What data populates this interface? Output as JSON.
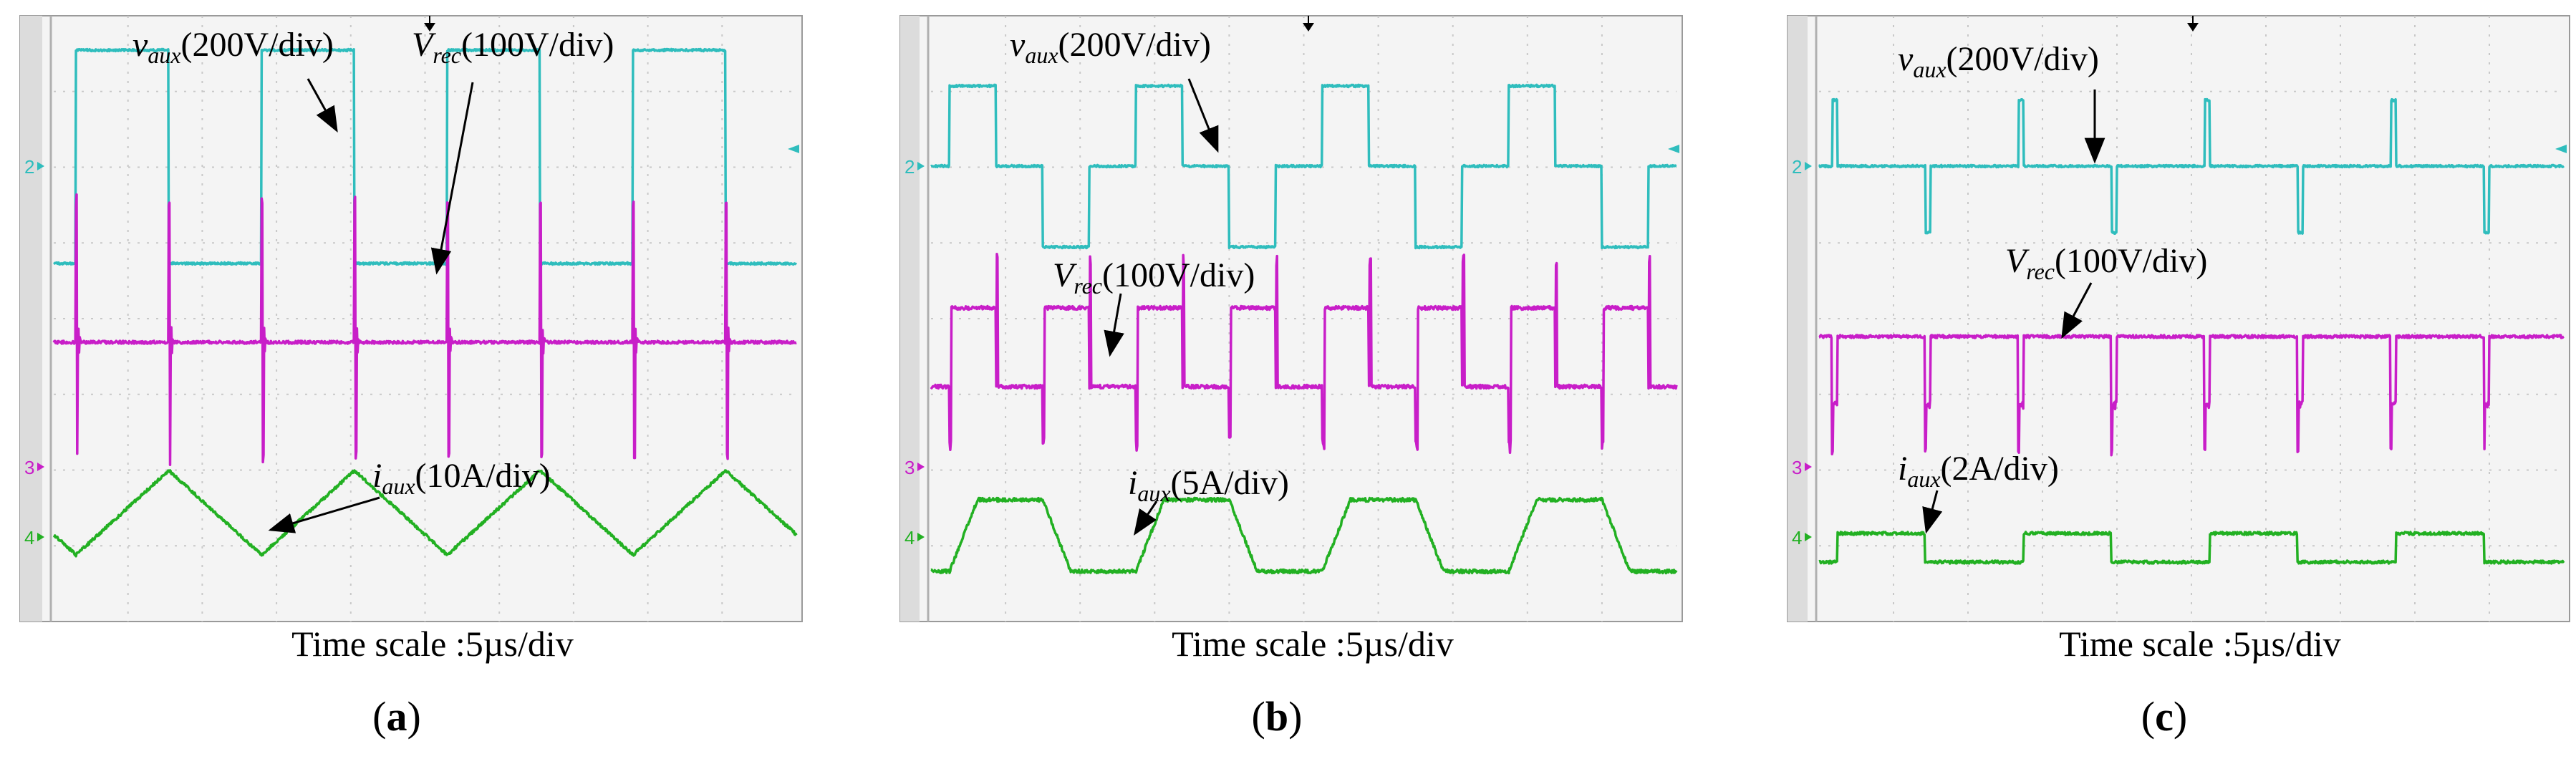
{
  "figure": {
    "panels": [
      {
        "id": "a",
        "caption_open": "(",
        "caption_letter": "a",
        "caption_close": ")",
        "time_scale": "Time scale :5µs/div",
        "channels": [
          {
            "marker": "2",
            "color": "#2fbdbd",
            "name_main": "v",
            "name_sub": "aux",
            "scale": "(200V/div)"
          },
          {
            "marker": "",
            "color": "#c81ec8",
            "name_main": "V",
            "name_sub": "rec",
            "scale": "(100V/div)"
          },
          {
            "marker": "3",
            "color": "#c81ec8",
            "name_main": "",
            "name_sub": "",
            "scale": ""
          },
          {
            "marker": "4",
            "color": "#22b022",
            "name_main": "i",
            "name_sub": "aux",
            "scale": "(10A/div)"
          }
        ]
      },
      {
        "id": "b",
        "caption_open": "(",
        "caption_letter": "b",
        "caption_close": ")",
        "time_scale": "Time scale :5µs/div",
        "channels": [
          {
            "marker": "2",
            "color": "#2fbdbd",
            "name_main": "v",
            "name_sub": "aux",
            "scale": "(200V/div)"
          },
          {
            "marker": "",
            "color": "#c81ec8",
            "name_main": "V",
            "name_sub": "rec",
            "scale": "(100V/div)"
          },
          {
            "marker": "3",
            "color": "#c81ec8",
            "name_main": "",
            "name_sub": "",
            "scale": ""
          },
          {
            "marker": "4",
            "color": "#22b022",
            "name_main": "i",
            "name_sub": "aux",
            "scale": "(5A/div)"
          }
        ]
      },
      {
        "id": "c",
        "caption_open": "(",
        "caption_letter": "c",
        "caption_close": ")",
        "time_scale": "Time scale :5µs/div",
        "channels": [
          {
            "marker": "2",
            "color": "#2fbdbd",
            "name_main": "v",
            "name_sub": "aux",
            "scale": "(200V/div)"
          },
          {
            "marker": "",
            "color": "#c81ec8",
            "name_main": "V",
            "name_sub": "rec",
            "scale": "(100V/div)"
          },
          {
            "marker": "3",
            "color": "#c81ec8",
            "name_main": "",
            "name_sub": "",
            "scale": ""
          },
          {
            "marker": "4",
            "color": "#22b022",
            "name_main": "i",
            "name_sub": "aux",
            "scale": "(2A/div)"
          }
        ]
      }
    ]
  },
  "chart_data": [
    {
      "type": "line",
      "title": "(a)",
      "xlabel": "Time scale :5µs/div",
      "x_unit": "µs",
      "x_divisions": 10,
      "y_divisions": 8,
      "series": [
        {
          "name": "v_aux",
          "scale": "200V/div",
          "shape": "two-level square wave, ~4 periods on screen",
          "period_div": 2.5
        },
        {
          "name": "V_rec",
          "scale": "100V/div",
          "shape": "flat level with sharp commutation spikes",
          "spike_period_div": 1.25
        },
        {
          "name": "i_aux",
          "scale": "10A/div",
          "shape": "triangular wave",
          "period_div": 2.5
        }
      ]
    },
    {
      "type": "line",
      "title": "(b)",
      "xlabel": "Time scale :5µs/div",
      "x_unit": "µs",
      "x_divisions": 10,
      "y_divisions": 8,
      "series": [
        {
          "name": "v_aux",
          "scale": "200V/div",
          "shape": "three-level stepped wave (+, 0, -)",
          "period_div": 2.5
        },
        {
          "name": "V_rec",
          "scale": "100V/div",
          "shape": "two-level rectified pulses with spikes",
          "period_div": 1.25
        },
        {
          "name": "i_aux",
          "scale": "5A/div",
          "shape": "trapezoidal wave",
          "period_div": 2.5
        }
      ]
    },
    {
      "type": "line",
      "title": "(c)",
      "xlabel": "Time scale :5µs/div",
      "x_unit": "µs",
      "x_divisions": 10,
      "y_divisions": 8,
      "series": [
        {
          "name": "v_aux",
          "scale": "200V/div",
          "shape": "zero level with narrow alternating pulses",
          "period_div": 2.5
        },
        {
          "name": "V_rec",
          "scale": "100V/div",
          "shape": "high level with narrow downward notches",
          "period_div": 1.25
        },
        {
          "name": "i_aux",
          "scale": "2A/div",
          "shape": "low-amplitude trapezoidal / step wave",
          "period_div": 2.5
        }
      ]
    }
  ]
}
